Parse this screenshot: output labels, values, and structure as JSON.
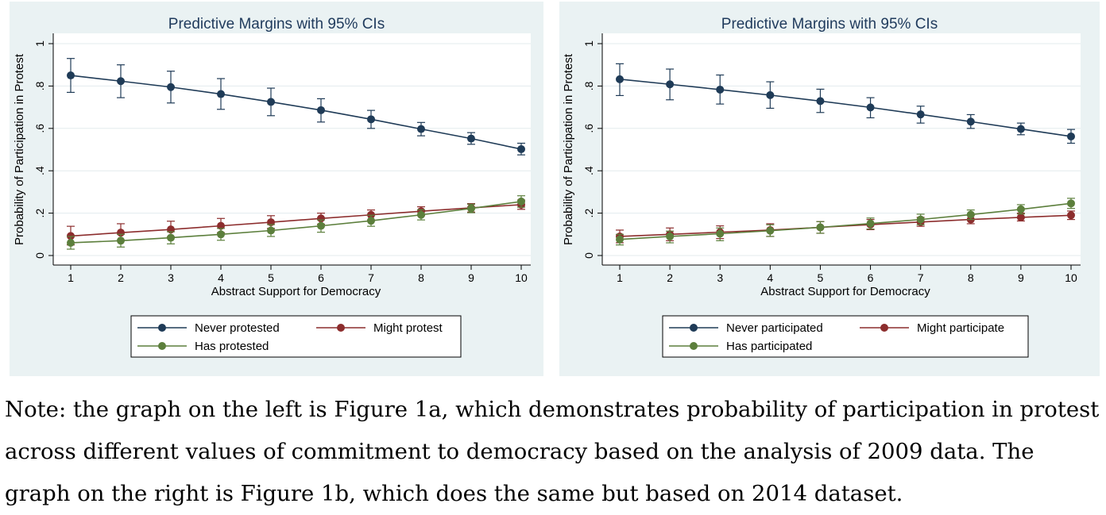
{
  "chart_data": [
    {
      "type": "line",
      "title": "Predictive Margins with 95% CIs",
      "xlabel": "Abstract Support for Democracy",
      "ylabel": "Probability of Participation in Protest",
      "x": [
        1,
        2,
        3,
        4,
        5,
        6,
        7,
        8,
        9,
        10
      ],
      "xlim": [
        1,
        10
      ],
      "ylim": [
        0,
        1
      ],
      "yticks": [
        "0",
        ".2",
        ".4",
        ".6",
        ".8",
        "1"
      ],
      "error_bars": "95% CI",
      "legend_position": "bottom",
      "series": [
        {
          "name": "Never protested",
          "color": "#1f3b57",
          "values": [
            0.85,
            0.823,
            0.795,
            0.762,
            0.725,
            0.686,
            0.643,
            0.597,
            0.552,
            0.502
          ],
          "ci_low": [
            0.77,
            0.745,
            0.72,
            0.69,
            0.66,
            0.63,
            0.6,
            0.565,
            0.525,
            0.475
          ],
          "ci_high": [
            0.93,
            0.9,
            0.87,
            0.835,
            0.79,
            0.74,
            0.685,
            0.628,
            0.58,
            0.53
          ]
        },
        {
          "name": "Might protest",
          "color": "#8c2d2d",
          "values": [
            0.092,
            0.108,
            0.123,
            0.14,
            0.157,
            0.175,
            0.192,
            0.209,
            0.225,
            0.24
          ],
          "ci_low": [
            0.05,
            0.07,
            0.088,
            0.108,
            0.128,
            0.148,
            0.168,
            0.188,
            0.205,
            0.218
          ],
          "ci_high": [
            0.138,
            0.15,
            0.162,
            0.175,
            0.188,
            0.2,
            0.215,
            0.23,
            0.245,
            0.262
          ]
        },
        {
          "name": "Has protested",
          "color": "#5c7f3c",
          "values": [
            0.06,
            0.07,
            0.084,
            0.1,
            0.118,
            0.14,
            0.164,
            0.192,
            0.222,
            0.255
          ],
          "ci_low": [
            0.03,
            0.04,
            0.055,
            0.072,
            0.09,
            0.11,
            0.138,
            0.168,
            0.202,
            0.228
          ],
          "ci_high": [
            0.09,
            0.1,
            0.112,
            0.128,
            0.146,
            0.168,
            0.19,
            0.216,
            0.242,
            0.282
          ]
        }
      ]
    },
    {
      "type": "line",
      "title": "Predictive Margins with 95% CIs",
      "xlabel": "Abstract Support for Democracy",
      "ylabel": "Probability of Participation in Protest",
      "x": [
        1,
        2,
        3,
        4,
        5,
        6,
        7,
        8,
        9,
        10
      ],
      "xlim": [
        1,
        10
      ],
      "ylim": [
        0,
        1
      ],
      "yticks": [
        "0",
        ".2",
        ".4",
        ".6",
        ".8",
        "1"
      ],
      "error_bars": "95% CI",
      "legend_position": "bottom",
      "series": [
        {
          "name": "Never participated",
          "color": "#1f3b57",
          "values": [
            0.832,
            0.808,
            0.783,
            0.757,
            0.729,
            0.699,
            0.666,
            0.632,
            0.597,
            0.562
          ],
          "ci_low": [
            0.755,
            0.735,
            0.715,
            0.695,
            0.675,
            0.65,
            0.625,
            0.6,
            0.57,
            0.53
          ],
          "ci_high": [
            0.905,
            0.88,
            0.852,
            0.82,
            0.785,
            0.745,
            0.705,
            0.665,
            0.625,
            0.595
          ]
        },
        {
          "name": "Might participate",
          "color": "#8c2d2d",
          "values": [
            0.09,
            0.1,
            0.11,
            0.12,
            0.133,
            0.146,
            0.158,
            0.17,
            0.18,
            0.19
          ],
          "ci_low": [
            0.06,
            0.07,
            0.08,
            0.09,
            0.105,
            0.122,
            0.138,
            0.15,
            0.163,
            0.17
          ],
          "ci_high": [
            0.12,
            0.13,
            0.14,
            0.15,
            0.16,
            0.17,
            0.18,
            0.19,
            0.2,
            0.21
          ]
        },
        {
          "name": "Has participated",
          "color": "#5c7f3c",
          "values": [
            0.076,
            0.09,
            0.103,
            0.117,
            0.133,
            0.151,
            0.17,
            0.193,
            0.218,
            0.246
          ],
          "ci_low": [
            0.05,
            0.06,
            0.07,
            0.09,
            0.105,
            0.125,
            0.145,
            0.17,
            0.196,
            0.222
          ],
          "ci_high": [
            0.1,
            0.115,
            0.13,
            0.145,
            0.16,
            0.177,
            0.195,
            0.215,
            0.24,
            0.27
          ]
        }
      ]
    }
  ],
  "note": "Note: the graph on the left is Figure 1a, which demonstrates probability of participation in protest across different values of commitment to democracy based on the analysis of 2009 data. The graph on the right is Figure 1b, which does the same but based on 2014 dataset."
}
